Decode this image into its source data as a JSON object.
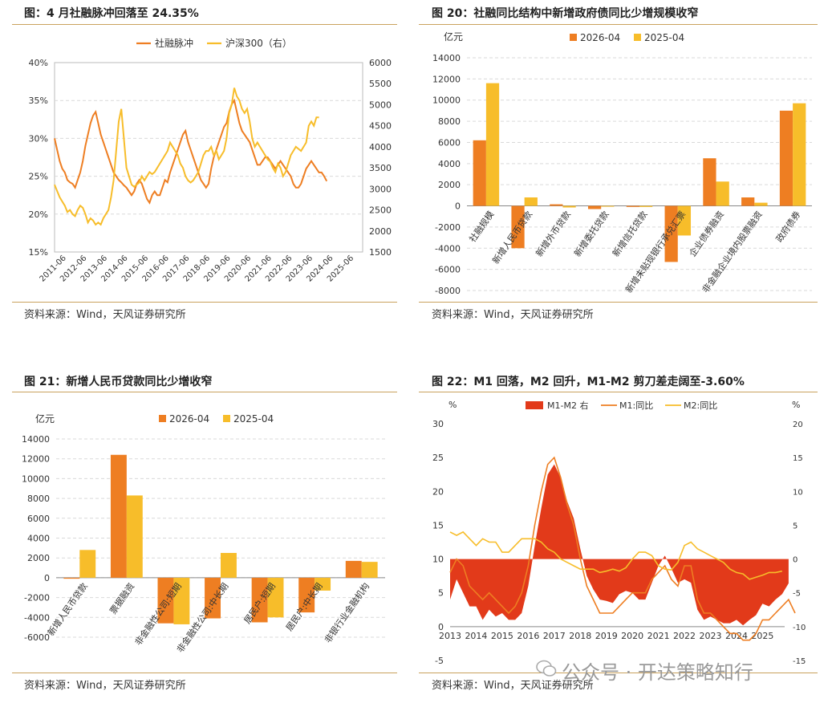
{
  "panels": [
    {
      "title": "图：4 月社融脉冲回落至 24.35%",
      "source": "资料来源：Wind，天风证券研究所"
    },
    {
      "title": "图 20：社融同比结构中新增政府债同比少增规模收窄",
      "source": "资料来源：Wind，天风证券研究所"
    },
    {
      "title": "图 21：新增人民币贷款同比少增收窄",
      "source": "资料来源：Wind，天风证券研究所"
    },
    {
      "title": "图 22：M1 回落，M2 回升，M1-M2 剪刀差走阔至-3.60%",
      "source": "资料来源：Wind，天风证券研究所"
    }
  ],
  "watermark": "公众号 · 开达策略知行",
  "colors": {
    "orange": "#EE7E22",
    "yellow": "#F7BD2A",
    "red": "#E23A1A",
    "rule": "#C9A25E"
  },
  "chart_data": [
    {
      "type": "line",
      "legend": [
        "社融脉冲",
        "沪深300（右）"
      ],
      "y_left": {
        "ticks": [
          "40%",
          "35%",
          "30%",
          "25%",
          "20%",
          "15%"
        ],
        "range": [
          15,
          40
        ]
      },
      "y_right": {
        "ticks": [
          "6000",
          "5500",
          "5000",
          "4500",
          "4000",
          "3500",
          "3000",
          "2500",
          "2000",
          "1500"
        ],
        "range": [
          1500,
          6000
        ]
      },
      "x_ticks": [
        "2011-06",
        "2012-06",
        "2013-06",
        "2014-06",
        "2015-06",
        "2016-06",
        "2017-06",
        "2018-06",
        "2019-06",
        "2020-06",
        "2021-06",
        "2022-06",
        "2023-06",
        "2024-06",
        "2025-06"
      ],
      "series": [
        {
          "name": "社融脉冲",
          "axis": "left",
          "x_start": 2011.0,
          "step": 0.125,
          "values": [
            30,
            28.5,
            27,
            26,
            25.5,
            24.5,
            24.2,
            24,
            23.5,
            24.5,
            25.5,
            27,
            29,
            30.5,
            32,
            33,
            33.5,
            32,
            30.5,
            29.5,
            28.5,
            27.5,
            26.5,
            25.5,
            25,
            24.5,
            24.2,
            23.8,
            23.5,
            23,
            22.5,
            23,
            24,
            24.5,
            24,
            23,
            22,
            21.5,
            22.5,
            23,
            22.5,
            22.5,
            23.5,
            24.5,
            24.2,
            25.5,
            26.5,
            27.5,
            28.5,
            29.5,
            30.5,
            31,
            29.5,
            28.5,
            27.5,
            26.5,
            25.5,
            24.5,
            24,
            23.5,
            24,
            26,
            27.5,
            28.5,
            29.5,
            30.5,
            31.5,
            32,
            33.5,
            34.5,
            35,
            33.5,
            32,
            31,
            30.5,
            30,
            29.5,
            28.5,
            27.5,
            26.5,
            26.5,
            27,
            27.5,
            27.5,
            27,
            26.5,
            26,
            26.5,
            27,
            26.5,
            26,
            25.5,
            25,
            24,
            23.5,
            23.5,
            24,
            25,
            26,
            26.5,
            27,
            26.5,
            26,
            25.5,
            25.5,
            25,
            24.35
          ]
        },
        {
          "name": "沪深300（右）",
          "axis": "right",
          "x_start": 2011.0,
          "step": 0.125,
          "values": [
            3100,
            2950,
            2800,
            2700,
            2600,
            2450,
            2500,
            2400,
            2350,
            2500,
            2600,
            2550,
            2400,
            2200,
            2300,
            2250,
            2150,
            2200,
            2150,
            2300,
            2400,
            2500,
            2800,
            3200,
            3900,
            4600,
            4900,
            4200,
            3500,
            3300,
            3100,
            3050,
            3100,
            3150,
            3300,
            3200,
            3300,
            3400,
            3350,
            3400,
            3500,
            3600,
            3700,
            3800,
            3900,
            4100,
            4000,
            3900,
            3800,
            3600,
            3500,
            3300,
            3200,
            3150,
            3200,
            3300,
            3400,
            3600,
            3800,
            3900,
            3900,
            4000,
            3800,
            3900,
            3700,
            3800,
            3900,
            4200,
            4800,
            5000,
            5400,
            5200,
            5100,
            4900,
            4800,
            4900,
            4600,
            4200,
            4000,
            4100,
            4000,
            3900,
            3800,
            3700,
            3650,
            3500,
            3400,
            3600,
            3500,
            3300,
            3400,
            3600,
            3800,
            3900,
            4000,
            3950,
            3900,
            4000,
            4100,
            4500,
            4600,
            4500,
            4700,
            4700
          ]
        }
      ]
    },
    {
      "type": "bar",
      "unit_label": "亿元",
      "y_ticks": [
        "14000",
        "12000",
        "10000",
        "8000",
        "6000",
        "4000",
        "2000",
        "0",
        "-2000",
        "-4000",
        "-6000",
        "-8000"
      ],
      "ylim": [
        -8000,
        14000
      ],
      "categories": [
        "社融规模",
        "新增人民币贷款",
        "新增外币贷款",
        "新增委托贷款",
        "新增信托贷款",
        "新增未贴现银行承兑汇票",
        "企业债券融资",
        "非金融企业境内股票融资",
        "政府债券"
      ],
      "series": [
        {
          "name": "2026-04",
          "values": [
            6200,
            -4000,
            150,
            -300,
            -100,
            -5300,
            4500,
            800,
            9000
          ]
        },
        {
          "name": "2025-04",
          "values": [
            11600,
            800,
            -150,
            -50,
            -100,
            -2800,
            2300,
            300,
            9700
          ]
        }
      ]
    },
    {
      "type": "bar",
      "unit_label": "亿元",
      "y_ticks": [
        "14000",
        "12000",
        "10000",
        "8000",
        "6000",
        "4000",
        "2000",
        "0",
        "-2000",
        "-4000",
        "-6000"
      ],
      "ylim": [
        -6000,
        14000
      ],
      "categories": [
        "新增人民币贷款",
        "票据融资",
        "非金融性公司:短期",
        "非金融性公司:中长期",
        "居民户:短期",
        "居民户:中长期",
        "非银行业金融机构"
      ],
      "series": [
        {
          "name": "2026-04",
          "values": [
            -100,
            12400,
            -4600,
            -4100,
            -4500,
            -3500,
            1700
          ]
        },
        {
          "name": "2025-04",
          "values": [
            2800,
            8300,
            -4700,
            2500,
            -4000,
            -1300,
            1600
          ]
        }
      ]
    },
    {
      "type": "area",
      "unit_left": "%",
      "unit_right": "%",
      "legend": [
        "M1-M2 右",
        "M1:同比",
        "M2:同比"
      ],
      "y_left": {
        "ticks": [
          "30",
          "25",
          "20",
          "15",
          "10",
          "5",
          "0",
          "-5"
        ],
        "range": [
          -5,
          30
        ]
      },
      "y_right": {
        "ticks": [
          "20",
          "15",
          "10",
          "5",
          "0",
          "-5",
          "-10",
          "-15"
        ],
        "range": [
          -15,
          20
        ]
      },
      "x_ticks": [
        "2013",
        "2014",
        "2015",
        "2016",
        "2017",
        "2018",
        "2019",
        "2020",
        "2021",
        "2022",
        "2023",
        "2024",
        "2025"
      ],
      "series": [
        {
          "name": "M1:同比",
          "axis": "left",
          "x_start": 2013.0,
          "step": 0.25,
          "values": [
            8,
            10,
            9,
            6,
            5,
            4,
            5,
            4,
            3,
            2,
            3,
            5,
            9,
            15,
            20,
            24,
            25,
            22,
            18,
            15,
            10,
            6,
            4,
            2,
            2,
            2,
            3,
            4,
            5,
            5,
            5,
            7,
            8,
            9,
            7,
            6,
            9,
            9,
            4,
            2,
            2,
            1,
            0,
            -1,
            -1,
            -2,
            -2,
            -1,
            1,
            1,
            2,
            3,
            4,
            2
          ]
        },
        {
          "name": "M2:同比",
          "axis": "left",
          "x_start": 2013.0,
          "step": 0.25,
          "values": [
            14,
            13.5,
            14,
            13,
            12,
            13,
            12.5,
            12.5,
            11,
            11,
            12,
            13,
            13,
            13,
            12.5,
            11.5,
            11,
            10,
            9.5,
            9,
            8.5,
            8.5,
            8.5,
            8,
            8.2,
            8.5,
            8.2,
            8.7,
            10,
            11,
            11,
            10.5,
            9,
            8.5,
            8.4,
            9.5,
            12,
            12.5,
            11.5,
            11,
            10.5,
            10,
            9.5,
            8.5,
            8,
            7.8,
            7,
            7.3,
            7.6,
            8,
            8,
            8.2
          ]
        },
        {
          "name": "M1-M2 右",
          "axis": "right",
          "x_start": 2013.0,
          "step": 0.25,
          "values": [
            -6,
            -3,
            -5,
            -7,
            -7,
            -9,
            -7.5,
            -8.5,
            -8,
            -9,
            -9,
            -8,
            -4,
            2,
            7.5,
            12.5,
            14,
            12,
            8.5,
            6,
            1.5,
            -2.5,
            -4.5,
            -6,
            -6.2,
            -6.5,
            -5.2,
            -4.7,
            -5,
            -6,
            -6,
            -3.5,
            -1,
            0.5,
            -1.4,
            -3.5,
            -3,
            -3.5,
            -7.5,
            -9,
            -8.5,
            -9,
            -9.5,
            -9.5,
            -9,
            -9.8,
            -9,
            -8.3,
            -6.6,
            -7,
            -6,
            -5.2,
            -3.6
          ]
        }
      ]
    }
  ]
}
